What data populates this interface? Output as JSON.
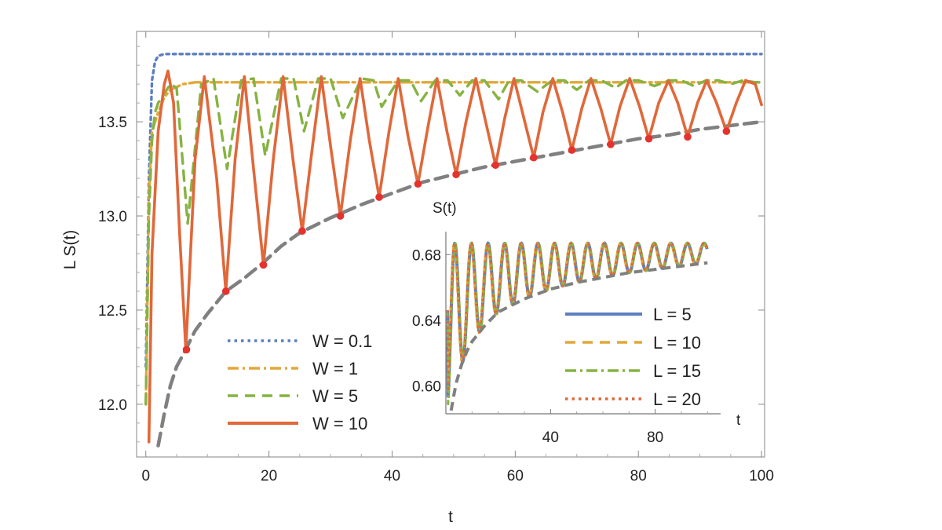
{
  "chart_data": [
    {
      "type": "line",
      "title": "",
      "xlabel": "t",
      "ylabel": "L S(t)",
      "xlim": [
        -1.5,
        100.5
      ],
      "ylim": [
        11.72,
        13.98
      ],
      "x_ticks": [
        0,
        20,
        40,
        60,
        80,
        100
      ],
      "y_ticks": [
        12.0,
        12.5,
        13.0,
        13.5
      ],
      "x_tick_labels": [
        "0",
        "20",
        "40",
        "60",
        "80",
        "100"
      ],
      "y_tick_labels": [
        "12.0",
        "12.5",
        "13.0",
        "13.5"
      ],
      "legend_position": "bottom-left",
      "series": [
        {
          "name": "W = 0.1",
          "color": "#5b7fbf",
          "style": "dotted",
          "x": [
            0,
            0.5,
            1,
            1.5,
            2,
            3,
            5,
            10,
            20,
            30,
            40,
            50,
            60,
            70,
            80,
            90,
            100
          ],
          "y": [
            12.2,
            13.2,
            13.72,
            13.82,
            13.85,
            13.86,
            13.86,
            13.86,
            13.86,
            13.86,
            13.86,
            13.86,
            13.86,
            13.86,
            13.86,
            13.86,
            13.86
          ]
        },
        {
          "name": "W = 1",
          "color": "#e1a83a",
          "style": "dash-dot",
          "x": [
            0,
            0.5,
            1,
            2,
            3,
            4,
            6,
            8,
            10,
            15,
            20,
            40,
            60,
            80,
            100
          ],
          "y": [
            12.0,
            13.1,
            13.45,
            13.55,
            13.63,
            13.67,
            13.7,
            13.71,
            13.71,
            13.71,
            13.71,
            13.71,
            13.71,
            13.71,
            13.71
          ]
        },
        {
          "name": "W = 5",
          "color": "#86b342",
          "style": "dashed",
          "x": [
            0,
            0.5,
            1,
            1.5,
            2,
            3,
            4,
            5.0,
            6.8,
            9,
            11,
            13.2,
            15.5,
            17.5,
            19.4,
            22,
            24,
            25.7,
            28,
            30,
            32,
            35,
            37,
            38.3,
            41,
            43,
            44.7,
            47,
            49,
            51,
            53,
            55,
            57.3,
            59,
            61,
            63.6,
            66,
            68,
            70,
            72,
            74,
            76.3,
            78,
            80,
            82.6,
            85,
            87,
            89,
            91,
            93,
            95,
            97,
            99,
            100
          ],
          "y": [
            12.0,
            13.0,
            13.4,
            13.55,
            13.6,
            13.65,
            13.7,
            13.68,
            12.96,
            13.7,
            13.73,
            13.25,
            13.72,
            13.73,
            13.32,
            13.73,
            13.73,
            13.45,
            13.73,
            13.73,
            13.52,
            13.73,
            13.72,
            13.58,
            13.72,
            13.72,
            13.61,
            13.72,
            13.72,
            13.64,
            13.72,
            13.72,
            13.62,
            13.72,
            13.72,
            13.66,
            13.72,
            13.72,
            13.67,
            13.72,
            13.72,
            13.68,
            13.72,
            13.72,
            13.69,
            13.72,
            13.72,
            13.69,
            13.72,
            13.72,
            13.7,
            13.72,
            13.71,
            13.71
          ]
        },
        {
          "name": "W = 10",
          "color": "#e0683a",
          "style": "solid",
          "x": [
            0.5,
            1,
            2,
            3,
            3.6,
            4.5,
            5.5,
            6.5,
            8,
            9.5,
            11.5,
            13.0,
            14.5,
            16.0,
            17.5,
            19.1,
            20.7,
            22.3,
            23.9,
            25.4,
            27,
            28.5,
            30.1,
            31.6,
            33.2,
            34.8,
            36.3,
            37.9,
            39.5,
            41.0,
            42.6,
            44.2,
            45.8,
            47.3,
            48.9,
            50.4,
            52.0,
            53.6,
            55.2,
            56.8,
            58.3,
            59.8,
            61.4,
            63.0,
            64.5,
            66.1,
            67.7,
            69.2,
            70.8,
            72.3,
            73.9,
            75.5,
            77.0,
            78.6,
            80.2,
            81.7,
            83.3,
            84.9,
            86.4,
            88.0,
            89.6,
            91.1,
            92.7,
            94.3,
            95.9,
            97.4,
            99,
            100
          ],
          "y": [
            11.8,
            12.8,
            13.45,
            13.7,
            13.77,
            13.6,
            12.9,
            12.29,
            13.3,
            13.74,
            13.2,
            12.6,
            13.3,
            13.74,
            13.25,
            12.74,
            13.3,
            13.74,
            13.3,
            12.92,
            13.35,
            13.74,
            13.35,
            13.0,
            13.4,
            13.73,
            13.4,
            13.1,
            13.45,
            13.73,
            13.42,
            13.17,
            13.47,
            13.73,
            13.45,
            13.22,
            13.5,
            13.73,
            13.5,
            13.27,
            13.52,
            13.73,
            13.52,
            13.31,
            13.55,
            13.73,
            13.55,
            13.35,
            13.57,
            13.73,
            13.57,
            13.38,
            13.58,
            13.73,
            13.58,
            13.41,
            13.6,
            13.72,
            13.6,
            13.42,
            13.6,
            13.72,
            13.6,
            13.45,
            13.6,
            13.72,
            13.7,
            13.59
          ]
        },
        {
          "color": "#808080",
          "style": "dashed-envelope",
          "x": [
            2,
            3,
            4,
            5,
            6,
            8,
            10,
            13,
            16,
            19,
            22,
            25,
            30,
            35,
            40,
            45,
            50,
            55,
            60,
            65,
            70,
            75,
            80,
            85,
            90,
            95,
            100
          ],
          "y": [
            11.78,
            11.95,
            12.1,
            12.2,
            12.26,
            12.39,
            12.48,
            12.6,
            12.67,
            12.75,
            12.84,
            12.91,
            12.99,
            13.06,
            13.12,
            13.18,
            13.22,
            13.26,
            13.29,
            13.32,
            13.35,
            13.38,
            13.41,
            13.43,
            13.46,
            13.48,
            13.5
          ]
        },
        {
          "color": "#e6322d",
          "style": "markers",
          "x": [
            6.6,
            13.0,
            19.1,
            25.4,
            31.6,
            37.9,
            44.2,
            50.4,
            56.8,
            63.0,
            69.2,
            75.5,
            81.7,
            88.0,
            94.3
          ],
          "y": [
            12.29,
            12.6,
            12.74,
            12.92,
            13.0,
            13.1,
            13.17,
            13.22,
            13.27,
            13.31,
            13.35,
            13.38,
            13.41,
            13.42,
            13.45
          ]
        }
      ]
    },
    {
      "type": "line",
      "title": "",
      "xlabel": "t",
      "ylabel": "S(t)",
      "xlim": [
        0,
        105
      ],
      "ylim": [
        0.583,
        0.694
      ],
      "x_ticks": [
        40,
        80
      ],
      "y_ticks": [
        0.6,
        0.64,
        0.68
      ],
      "x_tick_labels": [
        "40",
        "80"
      ],
      "y_tick_labels": [
        "0.60",
        "0.64",
        "0.68"
      ],
      "legend_position": "top-right",
      "series": [
        {
          "name": "L = 5",
          "color": "#5b7fbf",
          "style": "solid"
        },
        {
          "name": "L = 10",
          "color": "#e1a83a",
          "style": "dashed"
        },
        {
          "name": "L = 15",
          "color": "#86b342",
          "style": "dash-dot"
        },
        {
          "name": "L = 20",
          "color": "#e0683a",
          "style": "dotted"
        },
        {
          "color": "#808080",
          "style": "dashed-envelope",
          "x": [
            2,
            3,
            4,
            6,
            8,
            10,
            15,
            20,
            30,
            40,
            50,
            60,
            70,
            80,
            90,
            100
          ],
          "y": [
            0.585,
            0.594,
            0.602,
            0.613,
            0.621,
            0.627,
            0.637,
            0.645,
            0.653,
            0.659,
            0.663,
            0.666,
            0.669,
            0.671,
            0.673,
            0.675
          ]
        }
      ],
      "oscillation": {
        "period": 6.35,
        "top": 0.687,
        "first_minimum_t": 6.6
      }
    }
  ]
}
